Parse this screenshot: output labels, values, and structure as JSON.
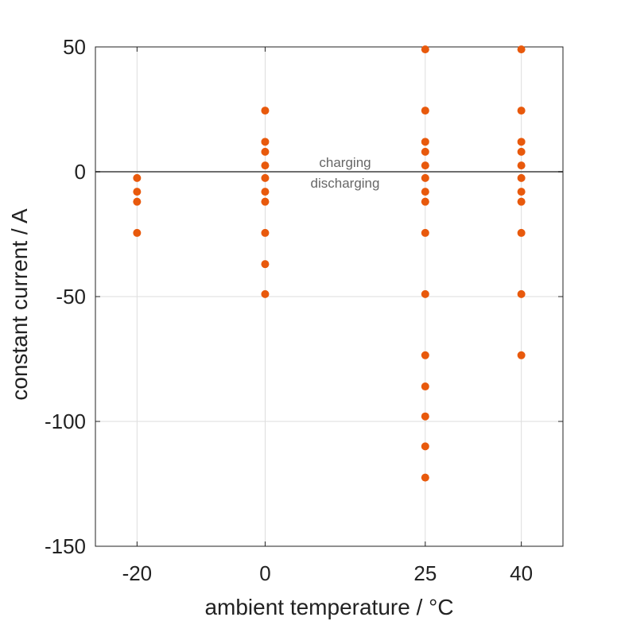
{
  "chart_data": {
    "type": "scatter",
    "xlabel": "ambient temperature / °C",
    "ylabel": "constant current / A",
    "xlim": [
      -26.5,
      46.5
    ],
    "ylim": [
      -150,
      50
    ],
    "xticks": [
      -20,
      0,
      25,
      40
    ],
    "yticks": [
      50,
      0,
      -50,
      -100,
      -150
    ],
    "grid": true,
    "reference_line": {
      "y": 0,
      "color": "#6e6e6e"
    },
    "annotations": {
      "above": "charging",
      "below": "discharging"
    },
    "marker_color": "#e8590c",
    "series": [
      {
        "values": [
          {
            "x": -20,
            "y": -2.5
          },
          {
            "x": -20,
            "y": -8
          },
          {
            "x": -20,
            "y": -12
          },
          {
            "x": -20,
            "y": -24.5
          },
          {
            "x": 0,
            "y": 24.5
          },
          {
            "x": 0,
            "y": 12
          },
          {
            "x": 0,
            "y": 8
          },
          {
            "x": 0,
            "y": 2.5
          },
          {
            "x": 0,
            "y": -2.5
          },
          {
            "x": 0,
            "y": -8
          },
          {
            "x": 0,
            "y": -12
          },
          {
            "x": 0,
            "y": -24.5
          },
          {
            "x": 0,
            "y": -37
          },
          {
            "x": 0,
            "y": -49
          },
          {
            "x": 25,
            "y": 49
          },
          {
            "x": 25,
            "y": 24.5
          },
          {
            "x": 25,
            "y": 12
          },
          {
            "x": 25,
            "y": 8
          },
          {
            "x": 25,
            "y": 2.5
          },
          {
            "x": 25,
            "y": -2.5
          },
          {
            "x": 25,
            "y": -8
          },
          {
            "x": 25,
            "y": -12
          },
          {
            "x": 25,
            "y": -24.5
          },
          {
            "x": 25,
            "y": -49
          },
          {
            "x": 25,
            "y": -73.5
          },
          {
            "x": 25,
            "y": -86
          },
          {
            "x": 25,
            "y": -98
          },
          {
            "x": 25,
            "y": -110
          },
          {
            "x": 25,
            "y": -122.5
          },
          {
            "x": 40,
            "y": 49
          },
          {
            "x": 40,
            "y": 24.5
          },
          {
            "x": 40,
            "y": 12
          },
          {
            "x": 40,
            "y": 8
          },
          {
            "x": 40,
            "y": 2.5
          },
          {
            "x": 40,
            "y": -2.5
          },
          {
            "x": 40,
            "y": -8
          },
          {
            "x": 40,
            "y": -12
          },
          {
            "x": 40,
            "y": -24.5
          },
          {
            "x": 40,
            "y": -49
          },
          {
            "x": 40,
            "y": -73.5
          }
        ]
      }
    ]
  }
}
